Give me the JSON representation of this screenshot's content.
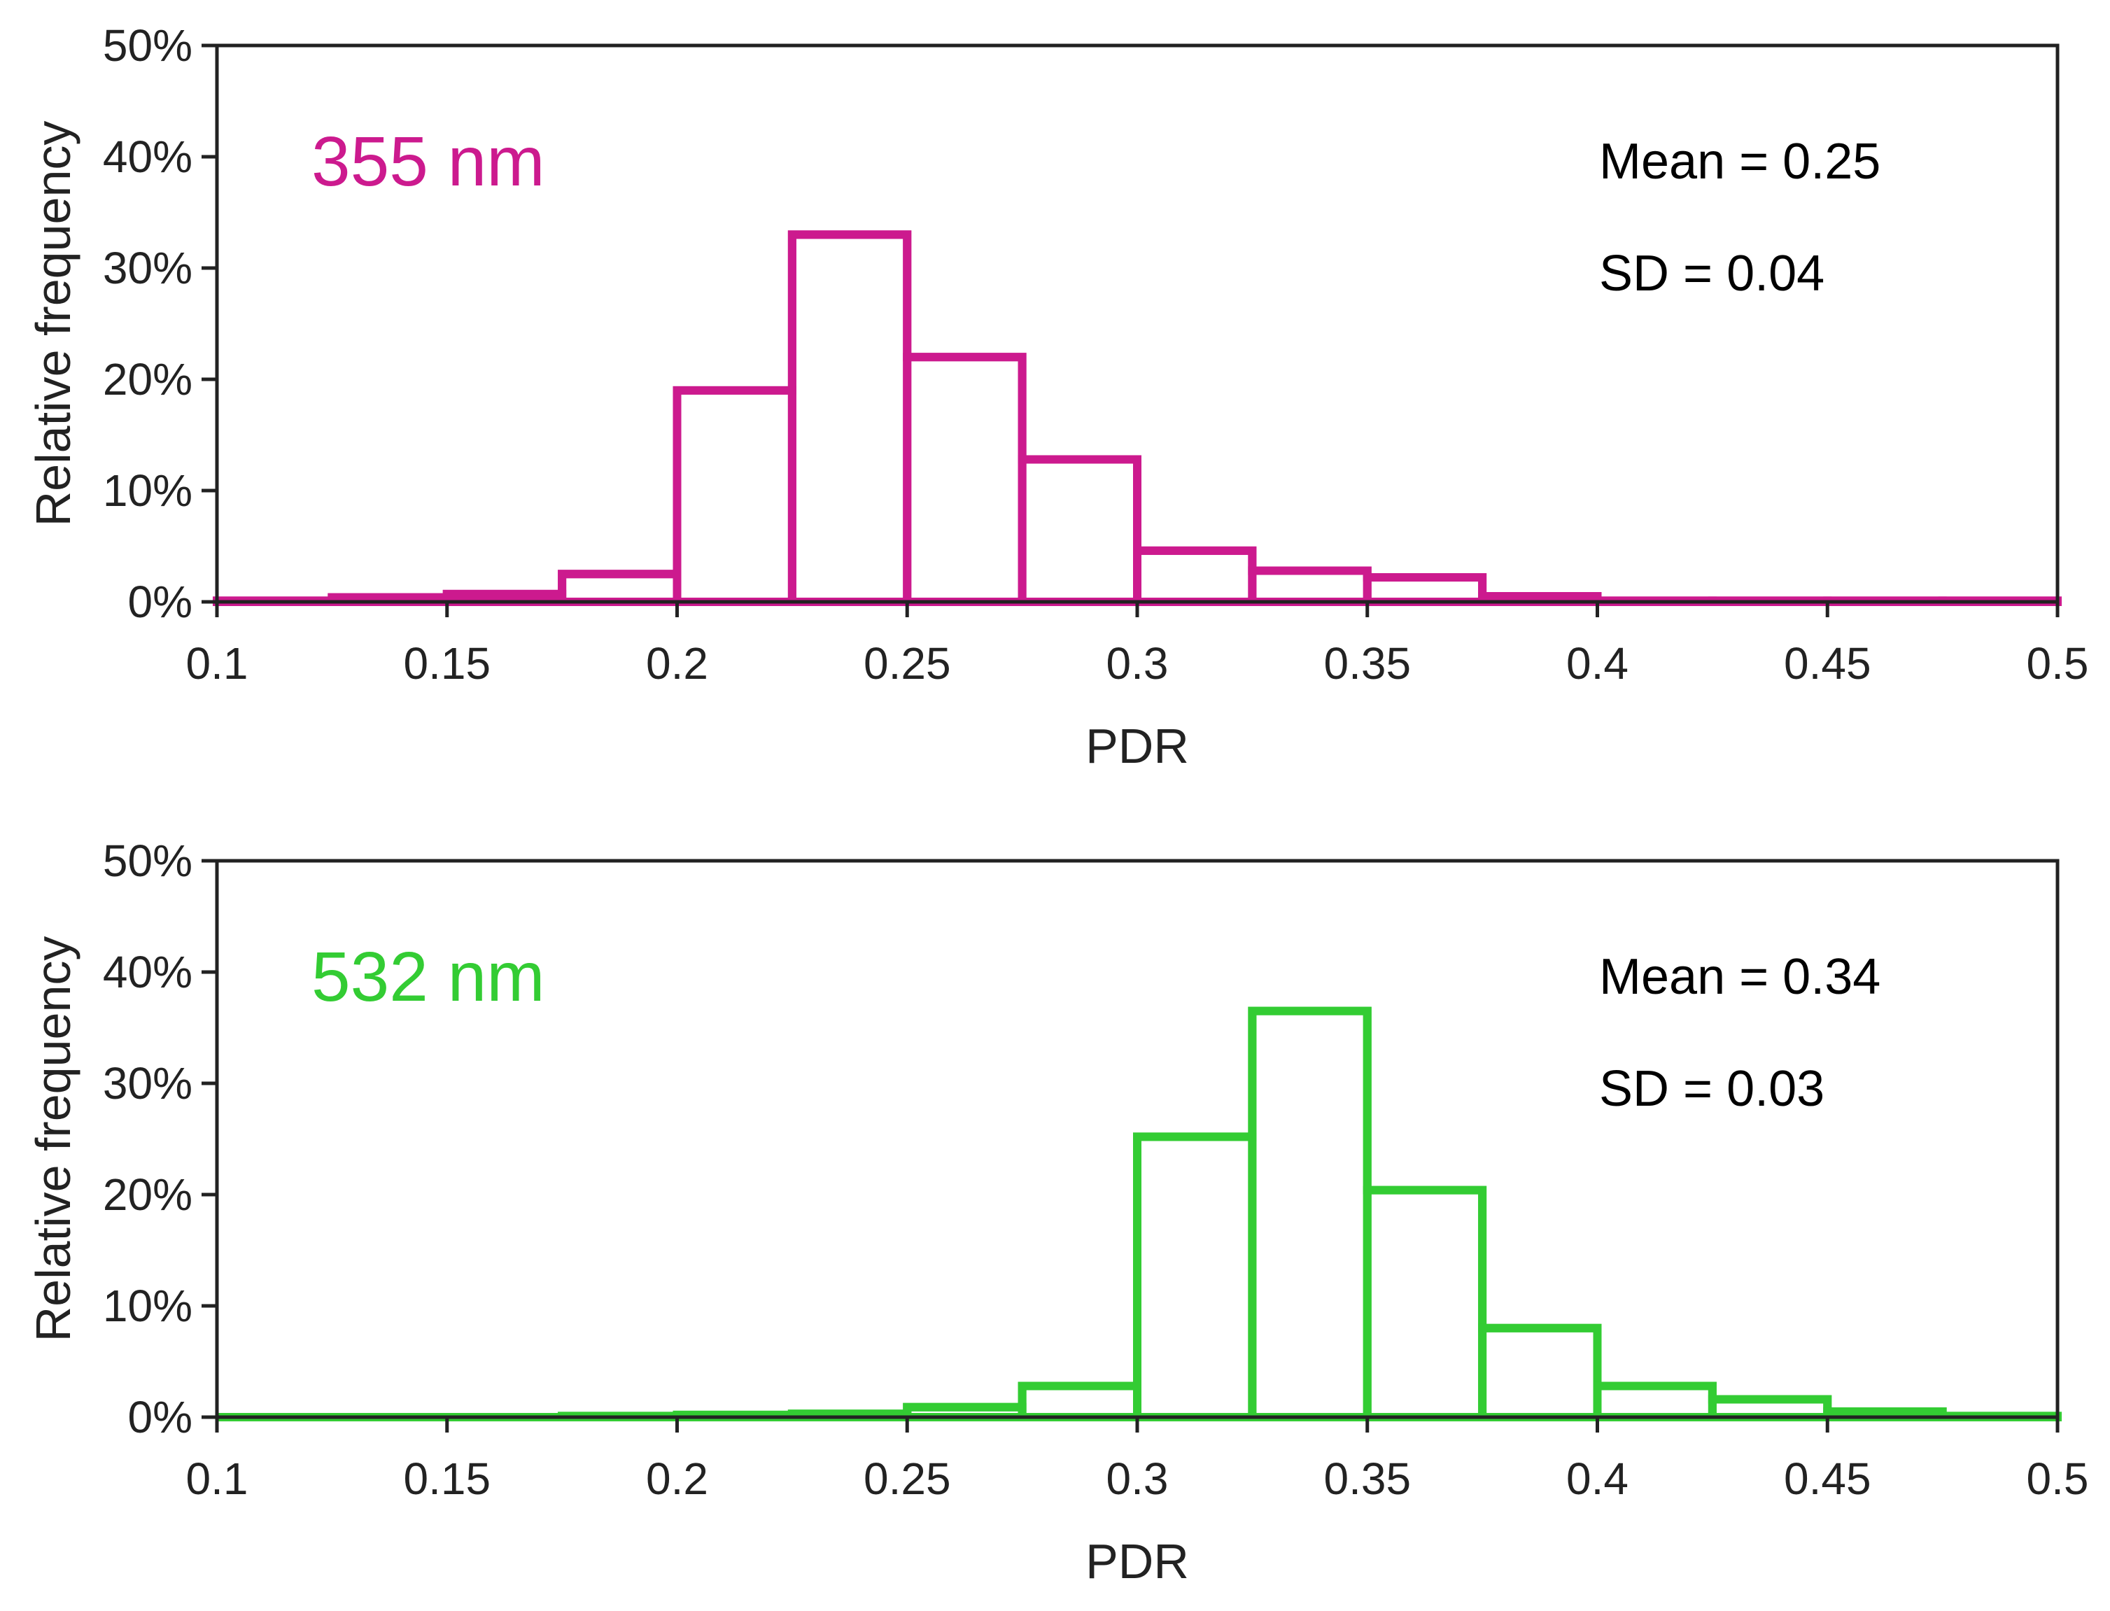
{
  "chart_data": [
    {
      "type": "bar",
      "wavelength_label": "355 nm",
      "color": "#cc1a8e",
      "xlabel": "PDR",
      "ylabel": "Relative frequency",
      "xlim": [
        0.1,
        0.5
      ],
      "ylim": [
        0,
        50
      ],
      "x_ticks": [
        "0.1",
        "0.15",
        "0.2",
        "0.25",
        "0.3",
        "0.35",
        "0.4",
        "0.45",
        "0.5"
      ],
      "y_ticks": [
        "0%",
        "10%",
        "20%",
        "30%",
        "40%",
        "50%"
      ],
      "bin_edges": [
        0.1,
        0.125,
        0.15,
        0.175,
        0.2,
        0.225,
        0.25,
        0.275,
        0.3,
        0.325,
        0.35,
        0.375,
        0.4,
        0.425,
        0.45,
        0.475,
        0.5
      ],
      "values": [
        0.1,
        0.4,
        0.7,
        2.5,
        19.0,
        33.0,
        22.0,
        12.8,
        4.6,
        2.8,
        2.2,
        0.5,
        0.1,
        0.1,
        0.1,
        0.1
      ],
      "mean_text": "Mean = 0.25",
      "sd_text": "SD = 0.04",
      "grid": false
    },
    {
      "type": "bar",
      "wavelength_label": "532 nm",
      "color": "#33cc33",
      "xlabel": "PDR",
      "ylabel": "Relative frequency",
      "xlim": [
        0.1,
        0.5
      ],
      "ylim": [
        0,
        50
      ],
      "x_ticks": [
        "0.1",
        "0.15",
        "0.2",
        "0.25",
        "0.3",
        "0.35",
        "0.4",
        "0.45",
        "0.5"
      ],
      "y_ticks": [
        "0%",
        "10%",
        "20%",
        "30%",
        "40%",
        "50%"
      ],
      "bin_edges": [
        0.1,
        0.125,
        0.15,
        0.175,
        0.2,
        0.225,
        0.25,
        0.275,
        0.3,
        0.325,
        0.35,
        0.375,
        0.4,
        0.425,
        0.45,
        0.475,
        0.5
      ],
      "values": [
        0.0,
        0.0,
        0.0,
        0.1,
        0.2,
        0.3,
        0.9,
        2.8,
        25.2,
        36.5,
        20.4,
        8.0,
        2.8,
        1.6,
        0.5,
        0.1
      ],
      "mean_text": "Mean = 0.34",
      "sd_text": "SD = 0.03",
      "grid": false
    }
  ]
}
